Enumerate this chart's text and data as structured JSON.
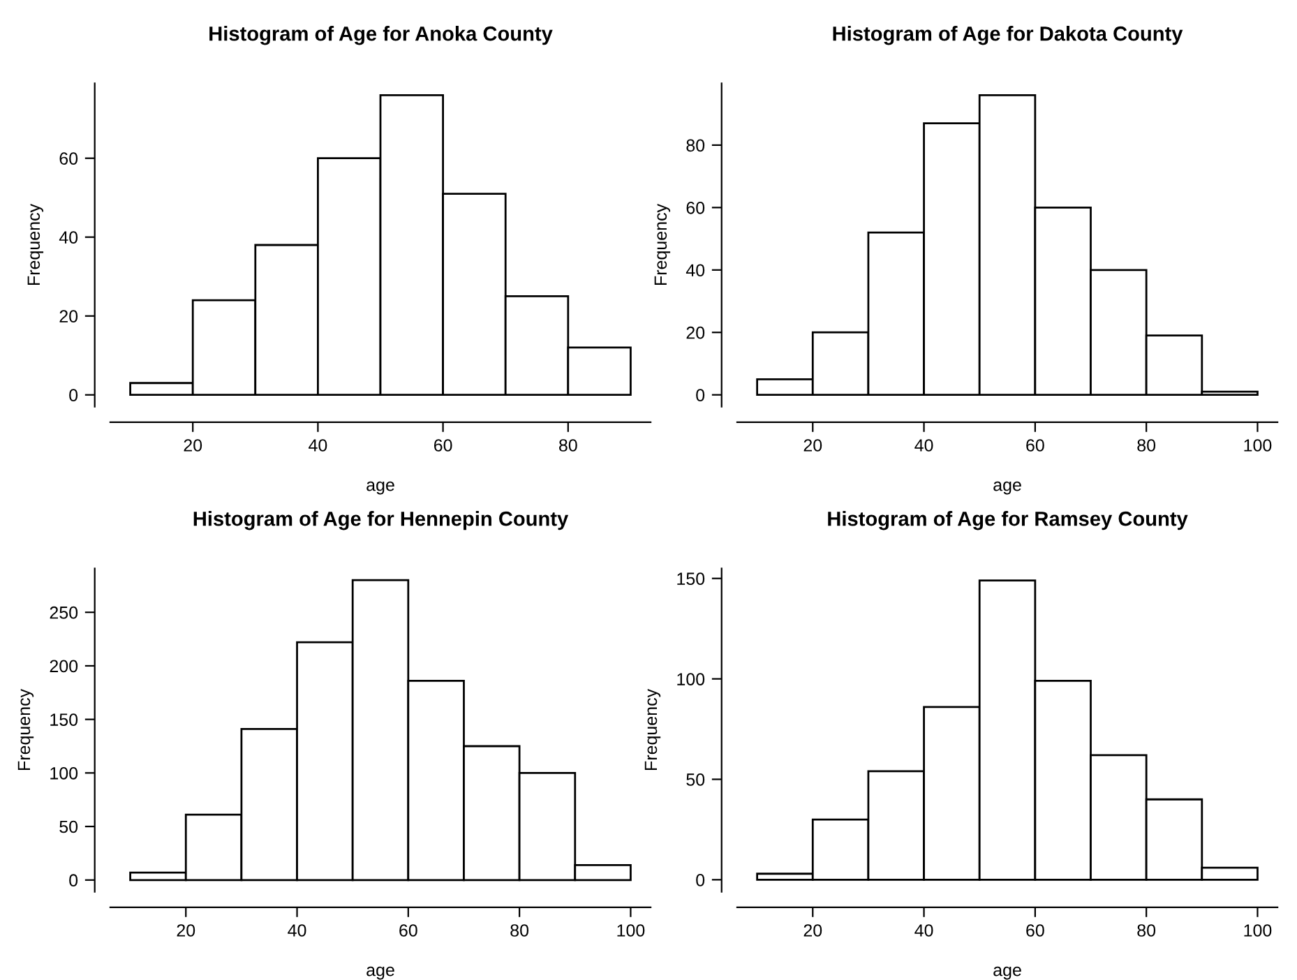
{
  "chart_data": [
    {
      "type": "histogram",
      "title": "Histogram of Age for Anoka County",
      "xlabel": "age",
      "ylabel": "Frequency",
      "bins": [
        10,
        20,
        30,
        40,
        50,
        60,
        70,
        80,
        90
      ],
      "values": [
        3,
        24,
        38,
        60,
        76,
        51,
        25,
        12
      ],
      "color": "#ffffff",
      "xlim": [
        6.8,
        93.2
      ],
      "xticks": [
        20,
        40,
        60,
        80
      ],
      "ylim": [
        -3,
        79
      ],
      "yticks": [
        0,
        20,
        40,
        60
      ],
      "grid": false
    },
    {
      "type": "histogram",
      "title": "Histogram of Age for Dakota County",
      "xlabel": "age",
      "ylabel": "Frequency",
      "bins": [
        10,
        20,
        30,
        40,
        50,
        60,
        70,
        80,
        90,
        100
      ],
      "values": [
        5,
        20,
        52,
        87,
        96,
        60,
        40,
        19,
        1
      ],
      "color": "#ffffff",
      "xlim": [
        6.4,
        103.6
      ],
      "xticks": [
        20,
        40,
        60,
        80,
        100
      ],
      "ylim": [
        -3.8,
        99.8
      ],
      "yticks": [
        0,
        20,
        40,
        60,
        80
      ],
      "grid": false
    },
    {
      "type": "histogram",
      "title": "Histogram of Age for Hennepin County",
      "xlabel": "age",
      "ylabel": "Frequency",
      "bins": [
        10,
        20,
        30,
        40,
        50,
        60,
        70,
        80,
        90,
        100
      ],
      "values": [
        7,
        61,
        141,
        222,
        280,
        186,
        125,
        100,
        14
      ],
      "color": "#ffffff",
      "xlim": [
        6.4,
        103.6
      ],
      "xticks": [
        20,
        40,
        60,
        80,
        100
      ],
      "ylim": [
        -11,
        291
      ],
      "yticks": [
        0,
        50,
        100,
        150,
        200,
        250
      ],
      "grid": false
    },
    {
      "type": "histogram",
      "title": "Histogram of Age for Ramsey County",
      "xlabel": "age",
      "ylabel": "Frequency",
      "bins": [
        10,
        20,
        30,
        40,
        50,
        60,
        70,
        80,
        90,
        100
      ],
      "values": [
        3,
        30,
        54,
        86,
        149,
        99,
        62,
        40,
        6
      ],
      "color": "#ffffff",
      "xlim": [
        6.4,
        103.6
      ],
      "xticks": [
        20,
        40,
        60,
        80,
        100
      ],
      "ylim": [
        -6,
        155
      ],
      "yticks": [
        0,
        50,
        100,
        150
      ],
      "grid": false
    }
  ]
}
